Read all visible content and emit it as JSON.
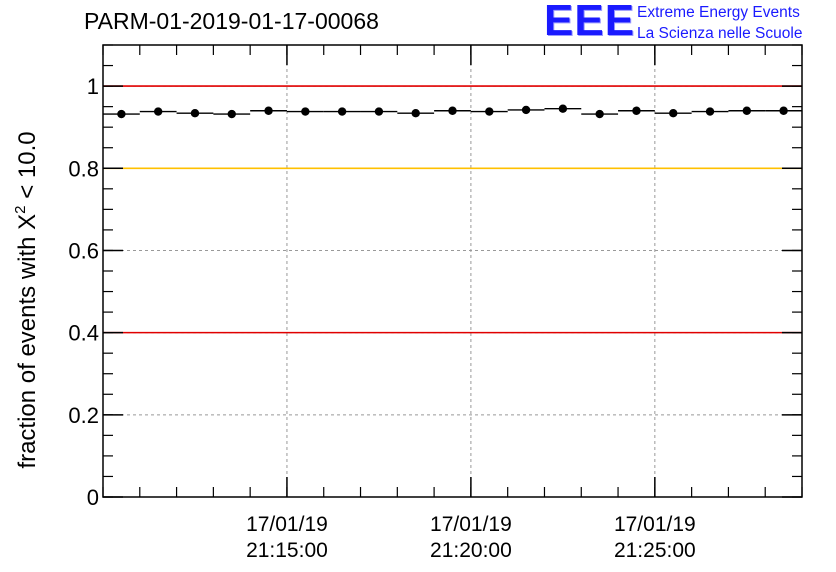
{
  "title": "PARM-01-2019-01-17-00068",
  "logo": {
    "mark": "EEE",
    "line1": "Extreme Energy Events",
    "line2": "La Scienza nelle Scuole",
    "color": "#1a1aff"
  },
  "chart_data": {
    "type": "scatter",
    "ylabel_prefix": "fraction of events with X",
    "ylabel_sup": "2",
    "ylabel_suffix": " < 10.0",
    "ylim": [
      0,
      1.1
    ],
    "xlim_minutes": [
      0,
      19
    ],
    "y_ticks": [
      {
        "value": 0,
        "label": "0"
      },
      {
        "value": 0.2,
        "label": "0.2"
      },
      {
        "value": 0.4,
        "label": "0.4"
      },
      {
        "value": 0.6,
        "label": "0.6"
      },
      {
        "value": 0.8,
        "label": "0.8"
      },
      {
        "value": 1,
        "label": "1"
      }
    ],
    "x_ticks": [
      {
        "minute": 5,
        "date": "17/01/19",
        "time": "21:15:00"
      },
      {
        "minute": 10,
        "date": "17/01/19",
        "time": "21:20:00"
      },
      {
        "minute": 15,
        "date": "17/01/19",
        "time": "21:25:00"
      }
    ],
    "reference_lines": [
      {
        "y": 1.0,
        "color": "#e00000"
      },
      {
        "y": 0.8,
        "color": "#ffc000"
      },
      {
        "y": 0.4,
        "color": "#e00000"
      }
    ],
    "points": [
      {
        "x": 0.5,
        "y": 0.932
      },
      {
        "x": 1.5,
        "y": 0.938
      },
      {
        "x": 2.5,
        "y": 0.934
      },
      {
        "x": 3.5,
        "y": 0.932
      },
      {
        "x": 4.5,
        "y": 0.94
      },
      {
        "x": 5.5,
        "y": 0.938
      },
      {
        "x": 6.5,
        "y": 0.938
      },
      {
        "x": 7.5,
        "y": 0.938
      },
      {
        "x": 8.5,
        "y": 0.934
      },
      {
        "x": 9.5,
        "y": 0.94
      },
      {
        "x": 10.5,
        "y": 0.938
      },
      {
        "x": 11.5,
        "y": 0.942
      },
      {
        "x": 12.5,
        "y": 0.945
      },
      {
        "x": 13.5,
        "y": 0.932
      },
      {
        "x": 14.5,
        "y": 0.94
      },
      {
        "x": 15.5,
        "y": 0.934
      },
      {
        "x": 16.5,
        "y": 0.938
      },
      {
        "x": 17.5,
        "y": 0.94
      },
      {
        "x": 18.5,
        "y": 0.94
      }
    ],
    "grid": true,
    "marker_color": "#000000"
  }
}
